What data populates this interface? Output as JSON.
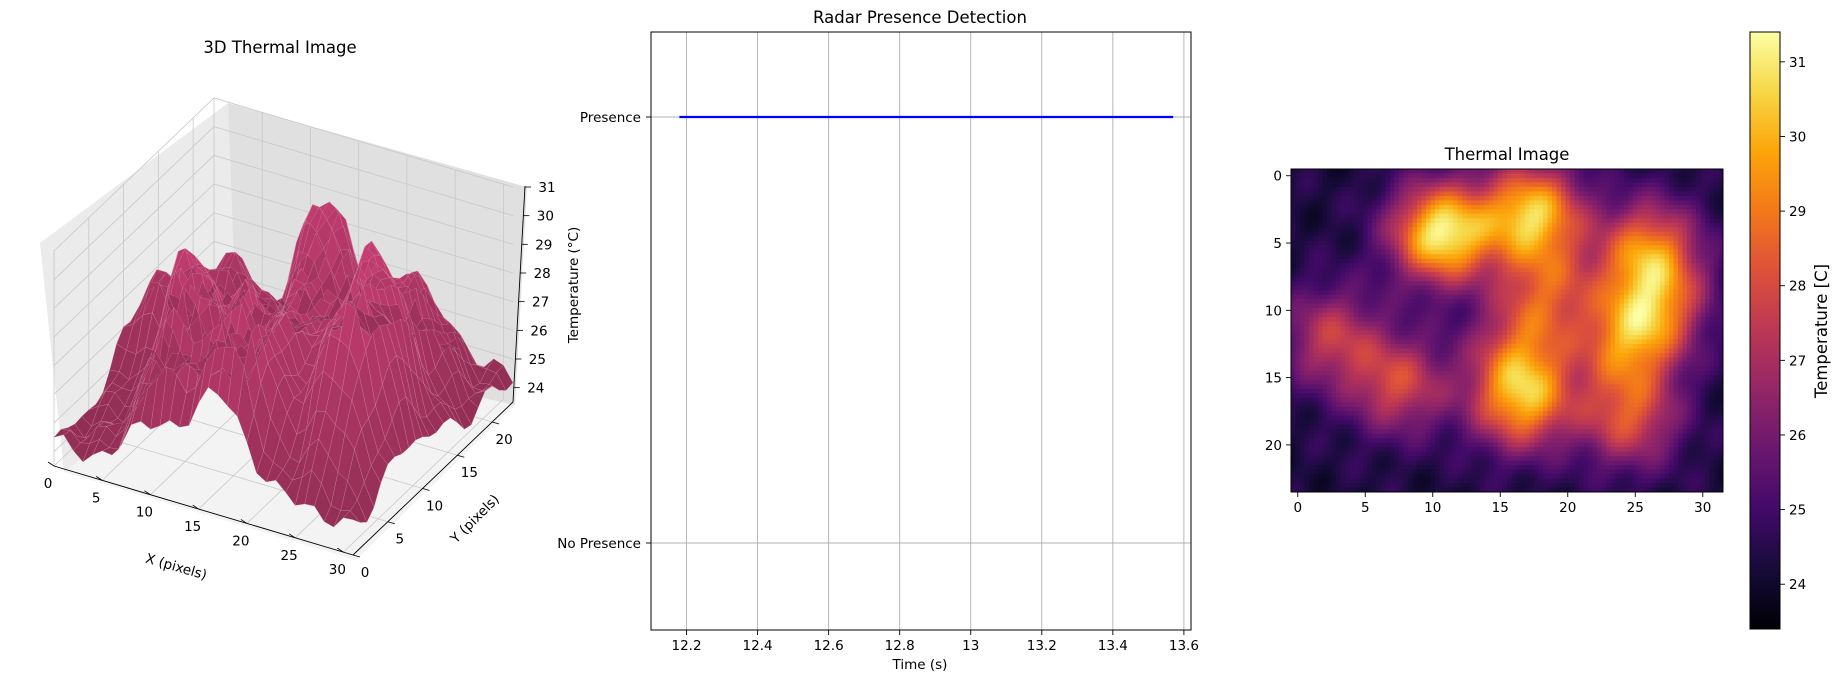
{
  "chart_data": [
    {
      "type": "surface3d",
      "title": "3D Thermal Image",
      "xlabel": "X (pixels)",
      "ylabel": "Y (pixels)",
      "zlabel": "Temperature (°C)",
      "xticks": [
        0,
        5,
        10,
        15,
        20,
        25,
        30
      ],
      "yticks": [
        0,
        5,
        10,
        15,
        20
      ],
      "zticks": [
        24,
        25,
        26,
        27,
        28,
        29,
        30,
        31
      ],
      "xlim": [
        0,
        31
      ],
      "ylim": [
        0,
        23
      ],
      "zlim": [
        23.5,
        31
      ],
      "grid": true,
      "color": "#b83a6a"
    },
    {
      "type": "line",
      "title": "Radar Presence Detection",
      "xlabel": "Time (s)",
      "ylabel": "",
      "xlim": [
        12.1,
        13.62
      ],
      "xticks": [
        12.2,
        12.4,
        12.6,
        12.8,
        13.0,
        13.2,
        13.4,
        13.6
      ],
      "ycategories": [
        "No Presence",
        "Presence"
      ],
      "grid": true,
      "series": [
        {
          "x": [
            12.18,
            13.57
          ],
          "y": [
            1,
            1
          ],
          "color": "#0000ff"
        }
      ]
    },
    {
      "type": "heatmap",
      "title": "Thermal Image",
      "xticks": [
        0,
        5,
        10,
        15,
        20,
        25,
        30
      ],
      "yticks": [
        0,
        5,
        10,
        15,
        20
      ],
      "shape": [
        24,
        32
      ],
      "colormap": "inferno",
      "colorbar": {
        "label": "Temperature [C]",
        "min": 23.4,
        "max": 31.4,
        "ticks": [
          24,
          25,
          26,
          27,
          28,
          29,
          30,
          31
        ]
      },
      "hotspots": [
        {
          "x": 10.7,
          "y": 4.3,
          "value": 31.2
        },
        {
          "x": 17.4,
          "y": 2.8,
          "value": 30.3
        },
        {
          "x": 16.6,
          "y": 16.8,
          "value": 29.4
        },
        {
          "x": 26.0,
          "y": 5.5,
          "value": 28.8
        },
        {
          "x": 26.5,
          "y": 9.5,
          "value": 28.0
        },
        {
          "x": 24.5,
          "y": 12.5,
          "value": 28.3
        },
        {
          "x": 24.5,
          "y": 18.0,
          "value": 28.0
        },
        {
          "x": 7.5,
          "y": 15.5,
          "value": 27.8
        },
        {
          "x": 2.5,
          "y": 12.0,
          "value": 27.4
        },
        {
          "x": 16.5,
          "y": 13.0,
          "value": 27.3
        },
        {
          "x": 18.5,
          "y": 8.5,
          "value": 27.6
        }
      ]
    }
  ]
}
